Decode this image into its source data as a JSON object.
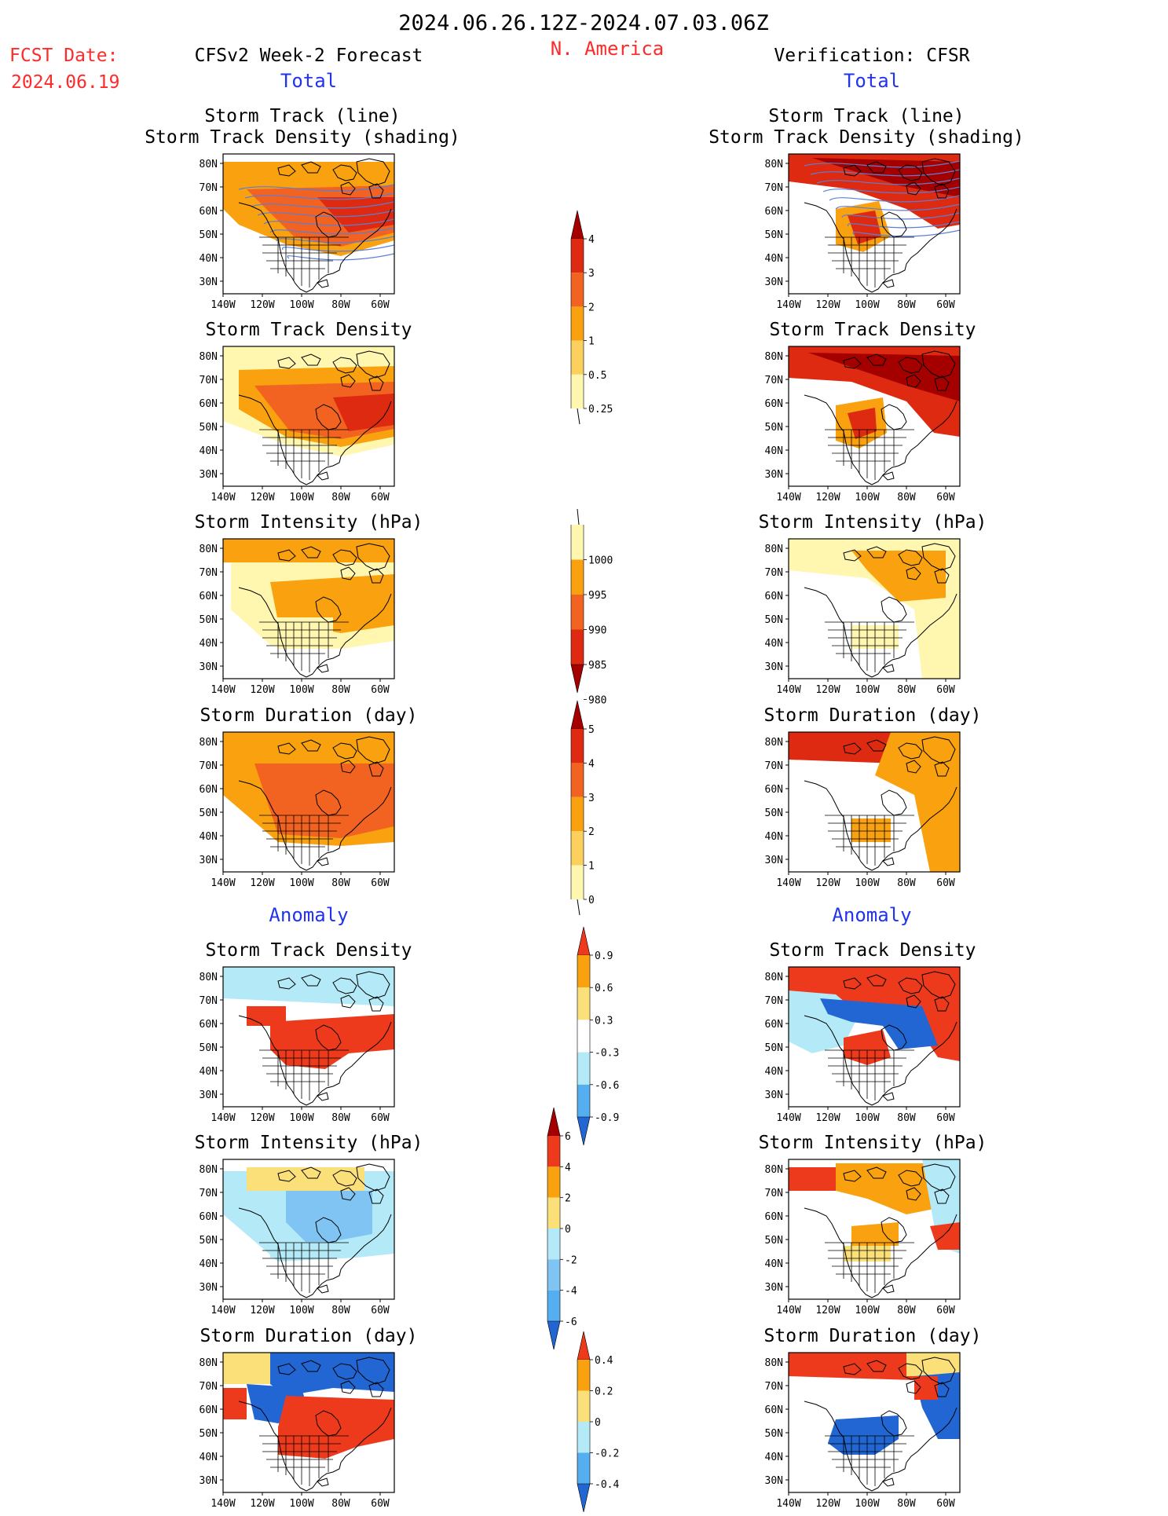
{
  "header": {
    "title": "2024.06.26.12Z-2024.07.03.06Z",
    "region": "N. America",
    "fcst_label": "FCST Date:",
    "fcst_date": "2024.06.19",
    "left_title": "CFSv2 Week-2 Forecast",
    "right_title": "Verification: CFSR",
    "total_label": "Total",
    "anomaly_label": "Anomaly"
  },
  "panel_titles": {
    "track_line": "Storm Track (line)",
    "track_shading": "Storm Track Density (shading)",
    "density": "Storm Track Density",
    "intensity": "Storm Intensity (hPa)",
    "duration": "Storm Duration (day)"
  },
  "axes": {
    "lat_labels": [
      "80N",
      "70N",
      "60N",
      "50N",
      "40N",
      "30N"
    ],
    "lon_labels": [
      "140W",
      "120W",
      "100W",
      "80W",
      "60W"
    ]
  },
  "colorbars": {
    "density_total": {
      "labels": [
        "4",
        "3",
        "2",
        "1",
        "0.5",
        "0.25"
      ],
      "colors": [
        "#a50000",
        "#dd2a10",
        "#f26322",
        "#f9a10e",
        "#fcd05c",
        "#fff6b0"
      ]
    },
    "intensity_total": {
      "labels": [
        "1000",
        "995",
        "990",
        "985",
        "980"
      ],
      "colors": [
        "#fff6b0",
        "#f9a10e",
        "#f26322",
        "#dd2a10",
        "#a50000"
      ]
    },
    "duration_total": {
      "labels": [
        "5",
        "4",
        "3",
        "2",
        "1",
        "0"
      ],
      "colors": [
        "#a50000",
        "#dd2a10",
        "#f26322",
        "#f9a10e",
        "#fcd05c",
        "#fff6b0"
      ]
    },
    "density_anom": {
      "labels": [
        "0.9",
        "0.6",
        "0.3",
        "-0.3",
        "-0.6",
        "-0.9"
      ],
      "colors": [
        "#ee3a1c",
        "#f9a10e",
        "#fbe07a",
        "#ffffff",
        "#b4eaf7",
        "#55aef0",
        "#2266d4"
      ]
    },
    "intensity_anom": {
      "labels": [
        "6",
        "4",
        "2",
        "0",
        "-2",
        "-4",
        "-6"
      ],
      "colors": [
        "#a50000",
        "#ee3a1c",
        "#f9a10e",
        "#fbe07a",
        "#b4eaf7",
        "#80c4f3",
        "#55aef0",
        "#2266d4"
      ]
    },
    "duration_anom": {
      "labels": [
        "0.4",
        "0.2",
        "0",
        "-0.2",
        "-0.4"
      ],
      "colors": [
        "#ee3a1c",
        "#f9a10e",
        "#fbe07a",
        "#b4eaf7",
        "#55aef0",
        "#2266d4"
      ]
    }
  }
}
